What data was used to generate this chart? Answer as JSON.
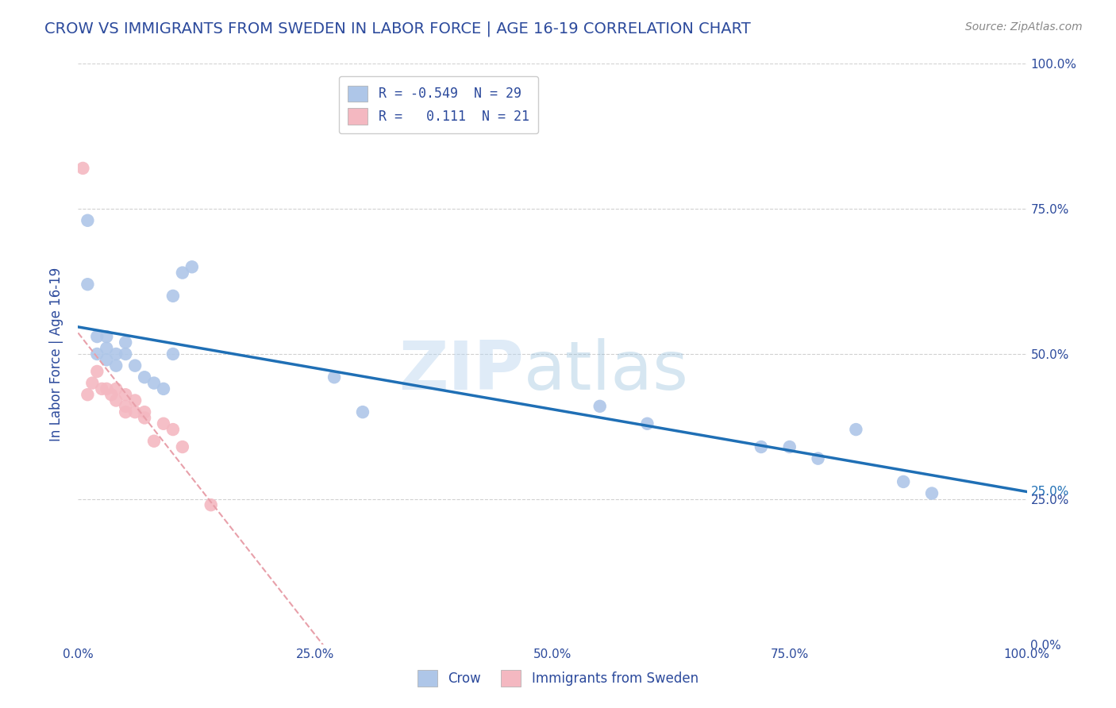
{
  "title": "CROW VS IMMIGRANTS FROM SWEDEN IN LABOR FORCE | AGE 16-19 CORRELATION CHART",
  "source": "Source: ZipAtlas.com",
  "ylabel": "In Labor Force | Age 16-19",
  "xlabel_ticks": [
    "0.0%",
    "25.0%",
    "50.0%",
    "75.0%",
    "100.0%"
  ],
  "ylabel_ticks": [
    "0.0%",
    "25.0%",
    "50.0%",
    "75.0%",
    "100.0%"
  ],
  "xlim": [
    0.0,
    1.0
  ],
  "ylim": [
    0.0,
    1.0
  ],
  "crow_R": -0.549,
  "crow_N": 29,
  "imm_R": 0.111,
  "imm_N": 21,
  "crow_color": "#aec6e8",
  "imm_color": "#f4b8c1",
  "trend_color_crow": "#1f6fb5",
  "trend_color_imm": "#e8a0aa",
  "crow_scatter_x": [
    0.01,
    0.01,
    0.02,
    0.02,
    0.03,
    0.03,
    0.03,
    0.04,
    0.04,
    0.05,
    0.05,
    0.06,
    0.07,
    0.08,
    0.09,
    0.1,
    0.1,
    0.11,
    0.12,
    0.27,
    0.3,
    0.55,
    0.6,
    0.72,
    0.75,
    0.78,
    0.82,
    0.87,
    0.9
  ],
  "crow_scatter_y": [
    0.73,
    0.62,
    0.53,
    0.5,
    0.53,
    0.51,
    0.49,
    0.5,
    0.48,
    0.52,
    0.5,
    0.48,
    0.46,
    0.45,
    0.44,
    0.6,
    0.5,
    0.64,
    0.65,
    0.46,
    0.4,
    0.41,
    0.38,
    0.34,
    0.34,
    0.32,
    0.37,
    0.28,
    0.26
  ],
  "imm_scatter_x": [
    0.005,
    0.01,
    0.015,
    0.02,
    0.025,
    0.03,
    0.035,
    0.04,
    0.04,
    0.05,
    0.05,
    0.05,
    0.06,
    0.06,
    0.07,
    0.07,
    0.08,
    0.09,
    0.1,
    0.11,
    0.14
  ],
  "imm_scatter_y": [
    0.82,
    0.43,
    0.45,
    0.47,
    0.44,
    0.44,
    0.43,
    0.44,
    0.42,
    0.43,
    0.41,
    0.4,
    0.42,
    0.4,
    0.4,
    0.39,
    0.35,
    0.38,
    0.37,
    0.34,
    0.24
  ],
  "watermark_zip": "ZIP",
  "watermark_atlas": "atlas",
  "background_color": "#ffffff",
  "grid_color": "#cccccc",
  "title_color": "#2c4a9c",
  "axis_label_color": "#2c4a9c",
  "tick_color": "#2c4a9c"
}
